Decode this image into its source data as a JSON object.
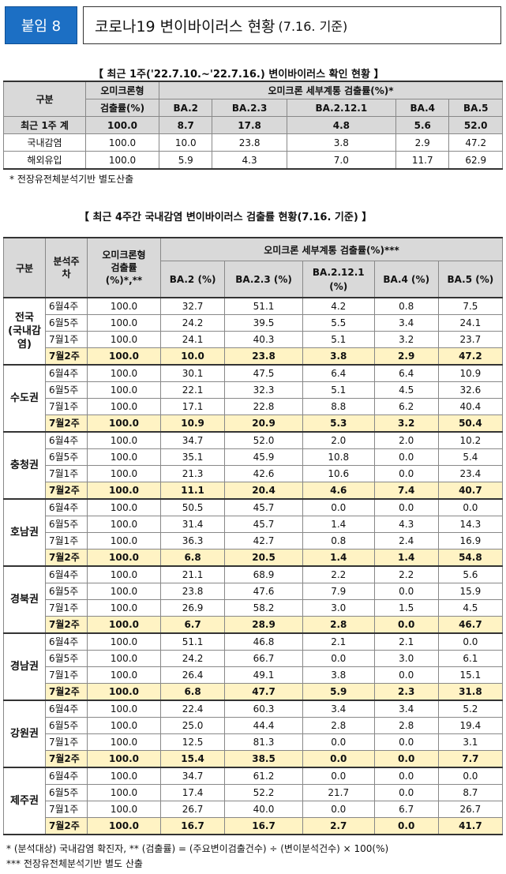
{
  "header": {
    "badge": "붙임 8",
    "title": "코로나19 변이바이러스 현황",
    "title_sub": "(7.16. 기준)"
  },
  "section1": {
    "title": "【 최근 1주('22.7.10.~'22.7.16.) 변이바이러스 확인 현황 】",
    "col_group": "구분",
    "col_omicron": "오미크론형",
    "col_omicron2": "검출률(%)",
    "col_sub": "오미크론 세부계통 검출률(%)*",
    "subtypes": [
      "BA.2",
      "BA.2.3",
      "BA.2.12.1",
      "BA.4",
      "BA.5"
    ],
    "rows": [
      {
        "label": "최근 1주 계",
        "values": [
          "100.0",
          "8.7",
          "17.8",
          "4.8",
          "5.6",
          "52.0"
        ]
      },
      {
        "label": "국내감염",
        "values": [
          "100.0",
          "10.0",
          "23.8",
          "3.8",
          "2.9",
          "47.2"
        ]
      },
      {
        "label": "해외유입",
        "values": [
          "100.0",
          "5.9",
          "4.3",
          "7.0",
          "11.7",
          "62.9"
        ]
      }
    ],
    "note": "* 전장유전체분석기반 별도산출"
  },
  "section2": {
    "title": "【 최근 4주간 국내감염 변이바이러스 검출률 현황(7.16. 기준) 】",
    "col_group": "구분",
    "col_week": "분석주\n차",
    "col_omicron": "오미크론형\n검출률\n(%)*,**",
    "col_sub": "오미크론 세부계통 검출률(%)***",
    "subtypes": [
      "BA.2 (%)",
      "BA.2.3 (%)",
      "BA.2.12.1\n(%)",
      "BA.4 (%)",
      "BA.5 (%)"
    ],
    "regions": [
      {
        "name": "전국\n(국내감\n염)",
        "rows": [
          [
            "6월4주",
            "100.0",
            "32.7",
            "51.1",
            "4.2",
            "0.8",
            "7.5"
          ],
          [
            "6월5주",
            "100.0",
            "24.2",
            "39.5",
            "5.5",
            "3.4",
            "24.1"
          ],
          [
            "7월1주",
            "100.0",
            "24.1",
            "40.3",
            "5.1",
            "3.2",
            "23.7"
          ],
          [
            "7월2주",
            "100.0",
            "10.0",
            "23.8",
            "3.8",
            "2.9",
            "47.2"
          ]
        ]
      },
      {
        "name": "수도권",
        "rows": [
          [
            "6월4주",
            "100.0",
            "30.1",
            "47.5",
            "6.4",
            "6.4",
            "10.9"
          ],
          [
            "6월5주",
            "100.0",
            "22.1",
            "32.3",
            "5.1",
            "4.5",
            "32.6"
          ],
          [
            "7월1주",
            "100.0",
            "17.1",
            "22.8",
            "8.8",
            "6.2",
            "40.4"
          ],
          [
            "7월2주",
            "100.0",
            "10.9",
            "20.9",
            "5.3",
            "3.2",
            "50.4"
          ]
        ]
      },
      {
        "name": "충청권",
        "rows": [
          [
            "6월4주",
            "100.0",
            "34.7",
            "52.0",
            "2.0",
            "2.0",
            "10.2"
          ],
          [
            "6월5주",
            "100.0",
            "35.1",
            "45.9",
            "10.8",
            "0.0",
            "5.4"
          ],
          [
            "7월1주",
            "100.0",
            "21.3",
            "42.6",
            "10.6",
            "0.0",
            "23.4"
          ],
          [
            "7월2주",
            "100.0",
            "11.1",
            "20.4",
            "4.6",
            "7.4",
            "40.7"
          ]
        ]
      },
      {
        "name": "호남권",
        "rows": [
          [
            "6월4주",
            "100.0",
            "50.5",
            "45.7",
            "0.0",
            "0.0",
            "0.0"
          ],
          [
            "6월5주",
            "100.0",
            "31.4",
            "45.7",
            "1.4",
            "4.3",
            "14.3"
          ],
          [
            "7월1주",
            "100.0",
            "36.3",
            "42.7",
            "0.8",
            "2.4",
            "16.9"
          ],
          [
            "7월2주",
            "100.0",
            "6.8",
            "20.5",
            "1.4",
            "1.4",
            "54.8"
          ]
        ]
      },
      {
        "name": "경북권",
        "rows": [
          [
            "6월4주",
            "100.0",
            "21.1",
            "68.9",
            "2.2",
            "2.2",
            "5.6"
          ],
          [
            "6월5주",
            "100.0",
            "23.8",
            "47.6",
            "7.9",
            "0.0",
            "15.9"
          ],
          [
            "7월1주",
            "100.0",
            "26.9",
            "58.2",
            "3.0",
            "1.5",
            "4.5"
          ],
          [
            "7월2주",
            "100.0",
            "6.7",
            "28.9",
            "2.8",
            "0.0",
            "46.7"
          ]
        ]
      },
      {
        "name": "경남권",
        "rows": [
          [
            "6월4주",
            "100.0",
            "51.1",
            "46.8",
            "2.1",
            "2.1",
            "0.0"
          ],
          [
            "6월5주",
            "100.0",
            "24.2",
            "66.7",
            "0.0",
            "3.0",
            "6.1"
          ],
          [
            "7월1주",
            "100.0",
            "26.4",
            "49.1",
            "3.8",
            "0.0",
            "15.1"
          ],
          [
            "7월2주",
            "100.0",
            "6.8",
            "47.7",
            "5.9",
            "2.3",
            "31.8"
          ]
        ]
      },
      {
        "name": "강원권",
        "rows": [
          [
            "6월4주",
            "100.0",
            "22.4",
            "60.3",
            "3.4",
            "3.4",
            "5.2"
          ],
          [
            "6월5주",
            "100.0",
            "25.0",
            "44.4",
            "2.8",
            "2.8",
            "19.4"
          ],
          [
            "7월1주",
            "100.0",
            "12.5",
            "81.3",
            "0.0",
            "0.0",
            "3.1"
          ],
          [
            "7월2주",
            "100.0",
            "15.4",
            "38.5",
            "0.0",
            "0.0",
            "7.7"
          ]
        ]
      },
      {
        "name": "제주권",
        "rows": [
          [
            "6월4주",
            "100.0",
            "34.7",
            "61.2",
            "0.0",
            "0.0",
            "0.0"
          ],
          [
            "6월5주",
            "100.0",
            "17.4",
            "52.2",
            "21.7",
            "0.0",
            "8.7"
          ],
          [
            "7월1주",
            "100.0",
            "26.7",
            "40.0",
            "0.0",
            "6.7",
            "26.7"
          ],
          [
            "7월2주",
            "100.0",
            "16.7",
            "16.7",
            "2.7",
            "0.0",
            "41.7"
          ]
        ]
      }
    ],
    "note1": "* (분석대상) 국내감염 확진자, ** (검출률) = (주요변이검출건수) ÷ (변이분석건수) × 100(%)",
    "note2": "*** 전장유전체분석기반 별도 산출"
  }
}
